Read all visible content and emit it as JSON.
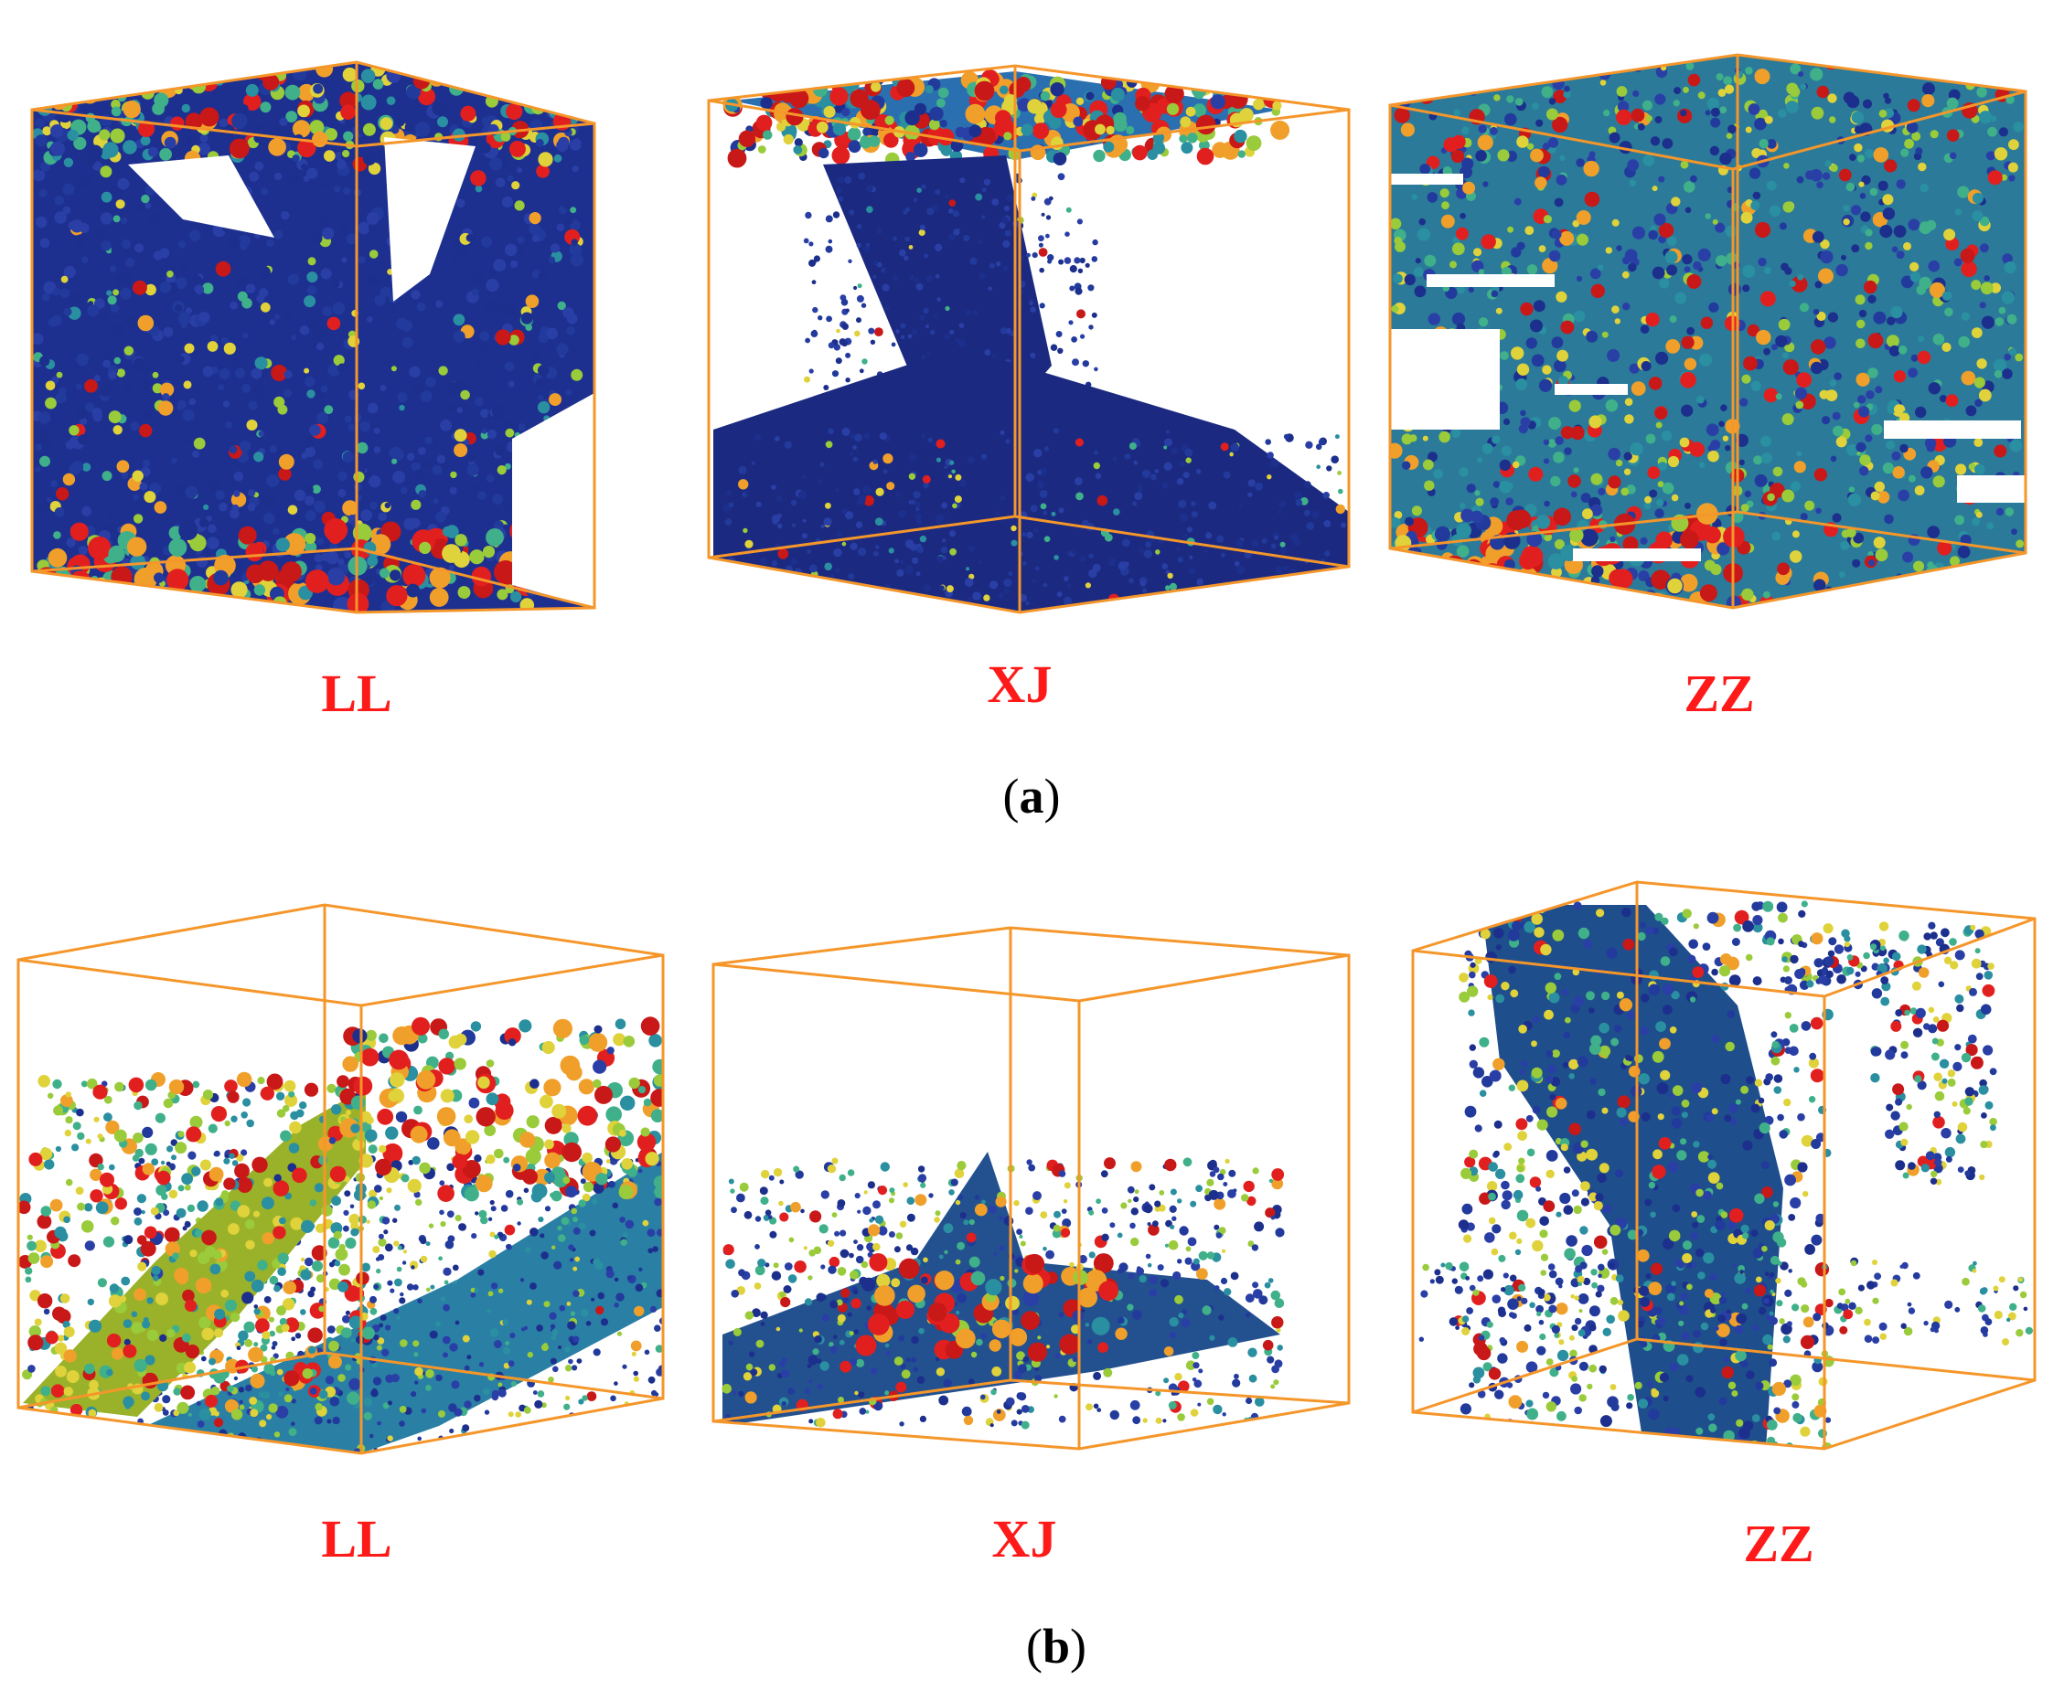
{
  "figure": {
    "panels": [
      {
        "caption_letter": "a",
        "cubes": [
          {
            "label": "LL",
            "pattern": "dense-block"
          },
          {
            "label": "XJ",
            "pattern": "slab-top-and-bottom"
          },
          {
            "label": "ZZ",
            "pattern": "layered-horizontal"
          }
        ]
      },
      {
        "caption_letter": "b",
        "cubes": [
          {
            "label": "LL",
            "pattern": "inclined-sheet"
          },
          {
            "label": "XJ",
            "pattern": "flat-cluster"
          },
          {
            "label": "ZZ",
            "pattern": "branching-network"
          }
        ]
      }
    ]
  },
  "colors": {
    "frame": "#f5962a",
    "label": "#ff1a1a",
    "pore_small": "#1c2f8c",
    "pore_mid": "#2a8fa0",
    "pore_large": "#e21f1f"
  }
}
